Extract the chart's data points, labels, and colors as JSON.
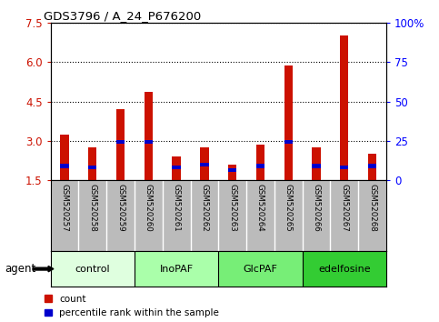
{
  "title": "GDS3796 / A_24_P676200",
  "samples": [
    "GSM520257",
    "GSM520258",
    "GSM520259",
    "GSM520260",
    "GSM520261",
    "GSM520262",
    "GSM520263",
    "GSM520264",
    "GSM520265",
    "GSM520266",
    "GSM520267",
    "GSM520268"
  ],
  "red_values": [
    3.25,
    2.75,
    4.2,
    4.85,
    2.4,
    2.75,
    2.1,
    2.85,
    5.85,
    2.75,
    7.0,
    2.5
  ],
  "blue_values": [
    2.05,
    2.0,
    2.95,
    2.95,
    2.0,
    2.1,
    1.9,
    2.05,
    2.95,
    2.05,
    2.0,
    2.05
  ],
  "ymin": 1.5,
  "ymax": 7.5,
  "yticks_left": [
    1.5,
    3.0,
    4.5,
    6.0,
    7.5
  ],
  "yticks_right": [
    0,
    25,
    50,
    75,
    100
  ],
  "groups": [
    {
      "label": "control",
      "start": 0,
      "end": 3,
      "color": "#dfffdf"
    },
    {
      "label": "InoPAF",
      "start": 3,
      "end": 6,
      "color": "#aaffaa"
    },
    {
      "label": "GlcPAF",
      "start": 6,
      "end": 9,
      "color": "#77ee77"
    },
    {
      "label": "edelfosine",
      "start": 9,
      "end": 12,
      "color": "#33cc33"
    }
  ],
  "agent_label": "agent",
  "bar_width": 0.3,
  "red_color": "#cc1100",
  "blue_color": "#0000cc",
  "background_color": "#ffffff",
  "plot_bg_color": "#ffffff",
  "tick_area_color": "#bbbbbb",
  "blue_bar_height": 0.15
}
